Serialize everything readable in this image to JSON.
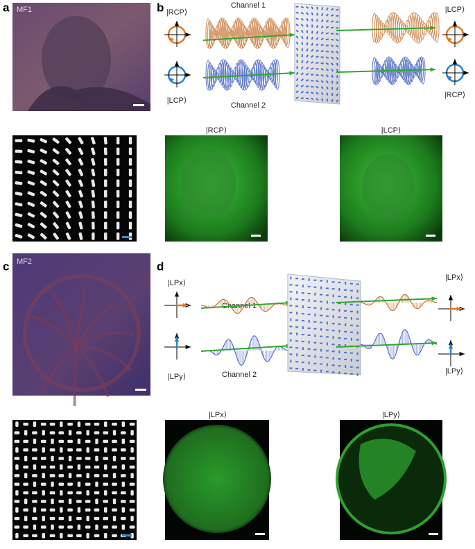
{
  "panel_a": {
    "label": "a",
    "sample": "MF1"
  },
  "panel_b": {
    "label": "b",
    "input_top": "|RCP⟩",
    "input_bottom": "|LCP⟩",
    "channel_1": "Channel 1",
    "channel_2": "Channel 2",
    "output_top": "|LCP⟩",
    "output_bottom": "|RCP⟩",
    "image_left_title": "|RCP⟩",
    "image_right_title": "|LCP⟩"
  },
  "panel_c": {
    "label": "c",
    "sample": "MF2"
  },
  "panel_d": {
    "label": "d",
    "input_top": "|LPx⟩",
    "input_bottom": "|LPy⟩",
    "channel_1": "Channel 1",
    "channel_2": "Channel 2",
    "output_top": "|LPx⟩",
    "output_bottom": "|LPy⟩",
    "image_left_title": "|LPx⟩",
    "image_right_title": "|LPy⟩"
  }
}
